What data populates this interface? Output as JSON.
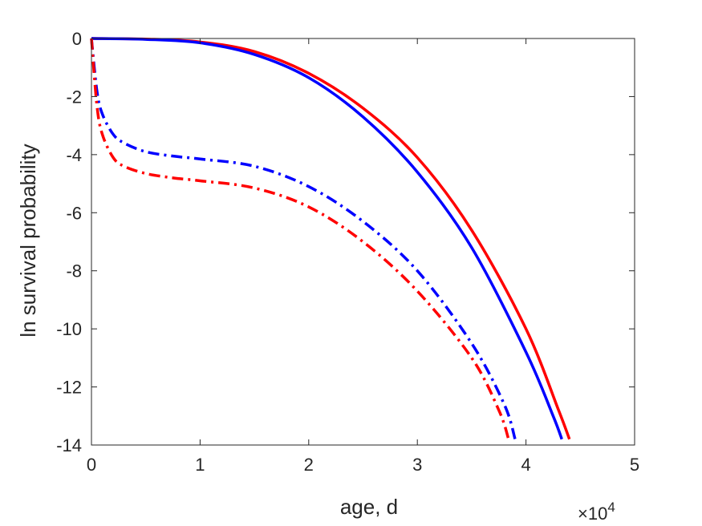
{
  "chart_data": {
    "type": "line",
    "xlabel": "age, d",
    "ylabel": "ln survival probability",
    "x_multiplier_base": "×10",
    "x_multiplier_exp": "4",
    "xlim": [
      0,
      5
    ],
    "ylim": [
      -14,
      0
    ],
    "xticks": [
      "0",
      "1",
      "2",
      "3",
      "4",
      "5"
    ],
    "yticks": [
      "0",
      "-2",
      "-4",
      "-6",
      "-8",
      "-10",
      "-12",
      "-14"
    ],
    "grid": false,
    "series": [
      {
        "color": "#ff0000",
        "style": "solid",
        "x": [
          0,
          0.5,
          1.0,
          1.5,
          2.0,
          2.5,
          3.0,
          3.5,
          4.0,
          4.3,
          4.4
        ],
        "y": [
          0,
          -0.02,
          -0.12,
          -0.45,
          -1.2,
          -2.4,
          -4.1,
          -6.6,
          -10.0,
          -12.8,
          -13.8
        ]
      },
      {
        "color": "#0000ff",
        "style": "solid",
        "x": [
          0,
          0.5,
          1.0,
          1.5,
          2.0,
          2.5,
          3.0,
          3.5,
          4.0,
          4.25,
          4.33
        ],
        "y": [
          0,
          -0.03,
          -0.15,
          -0.55,
          -1.35,
          -2.7,
          -4.6,
          -7.2,
          -10.8,
          -13.0,
          -13.8
        ]
      },
      {
        "color": "#0000ff",
        "style": "dashdot",
        "x": [
          0,
          0.05,
          0.1,
          0.2,
          0.3,
          0.5,
          0.75,
          1.0,
          1.5,
          2.0,
          2.5,
          3.0,
          3.5,
          3.8,
          3.9
        ],
        "y": [
          0,
          -1.8,
          -2.6,
          -3.3,
          -3.6,
          -3.9,
          -4.05,
          -4.15,
          -4.4,
          -5.1,
          -6.3,
          -8.0,
          -10.5,
          -12.6,
          -13.8
        ]
      },
      {
        "color": "#ff0000",
        "style": "dashdot",
        "x": [
          0,
          0.05,
          0.1,
          0.2,
          0.3,
          0.5,
          0.75,
          1.0,
          1.5,
          2.0,
          2.5,
          3.0,
          3.5,
          3.75,
          3.84
        ],
        "y": [
          0,
          -2.3,
          -3.3,
          -4.1,
          -4.4,
          -4.65,
          -4.8,
          -4.9,
          -5.15,
          -5.8,
          -7.0,
          -8.7,
          -11.0,
          -12.8,
          -13.8
        ]
      }
    ]
  }
}
